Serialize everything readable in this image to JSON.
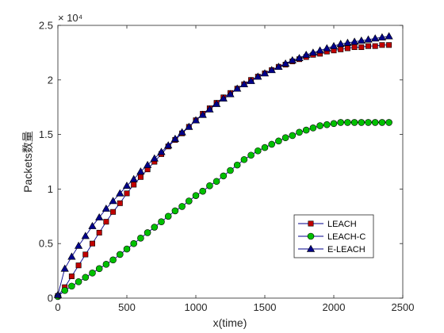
{
  "chart_data": {
    "type": "line",
    "xlabel": "x(time)",
    "ylabel": "Packets数量",
    "y_exponent_label": "× 10⁴",
    "xlim": [
      0,
      2500
    ],
    "ylim": [
      0,
      25000
    ],
    "x_ticks": [
      0,
      500,
      1000,
      1500,
      2000,
      2500
    ],
    "x_tick_labels": [
      "0",
      "500",
      "1000",
      "1500",
      "2000",
      "2500"
    ],
    "y_ticks": [
      0,
      5000,
      10000,
      15000,
      20000,
      25000
    ],
    "y_tick_labels": [
      "0",
      "0.5",
      "1",
      "1.5",
      "2",
      "2.5"
    ],
    "grid": false,
    "legend_position": "lower-right",
    "x": [
      0,
      50,
      100,
      150,
      200,
      250,
      300,
      350,
      400,
      450,
      500,
      550,
      600,
      650,
      700,
      750,
      800,
      850,
      900,
      950,
      1000,
      1050,
      1100,
      1150,
      1200,
      1250,
      1300,
      1350,
      1400,
      1450,
      1500,
      1550,
      1600,
      1650,
      1700,
      1750,
      1800,
      1850,
      1900,
      1950,
      2000,
      2050,
      2100,
      2150,
      2200,
      2250,
      2300,
      2350,
      2400
    ],
    "series": [
      {
        "name": "LEACH",
        "color": "#c00000",
        "marker": "square",
        "values": [
          200,
          1000,
          2000,
          3000,
          4000,
          5000,
          6000,
          7000,
          7900,
          8700,
          9600,
          10400,
          11100,
          11800,
          12500,
          13200,
          13900,
          14500,
          15100,
          15700,
          16300,
          16900,
          17400,
          17900,
          18400,
          18800,
          19200,
          19600,
          20000,
          20300,
          20600,
          20900,
          21200,
          21400,
          21700,
          21900,
          22100,
          22300,
          22400,
          22600,
          22700,
          22800,
          22900,
          23000,
          23000,
          23100,
          23100,
          23200,
          23200
        ]
      },
      {
        "name": "LEACH-C",
        "color": "#00c000",
        "marker": "circle",
        "values": [
          150,
          700,
          1100,
          1500,
          1900,
          2300,
          2700,
          3100,
          3500,
          4000,
          4500,
          5000,
          5500,
          6000,
          6500,
          7000,
          7500,
          8000,
          8400,
          8900,
          9400,
          9800,
          10300,
          10700,
          11200,
          11700,
          12200,
          12700,
          13100,
          13500,
          13800,
          14100,
          14400,
          14700,
          14900,
          15200,
          15400,
          15600,
          15800,
          15900,
          16000,
          16100,
          16100,
          16100,
          16100,
          16100,
          16100,
          16100,
          16100
        ]
      },
      {
        "name": "E-LEACH",
        "color": "#00008b",
        "marker": "triangle",
        "values": [
          300,
          2700,
          3800,
          4800,
          5700,
          6600,
          7400,
          8200,
          8900,
          9600,
          10300,
          10900,
          11600,
          12200,
          12800,
          13400,
          14000,
          14600,
          15200,
          15700,
          16300,
          16800,
          17300,
          17800,
          18300,
          18700,
          19200,
          19600,
          19900,
          20300,
          20600,
          20900,
          21200,
          21500,
          21800,
          22000,
          22300,
          22500,
          22700,
          22900,
          23100,
          23300,
          23400,
          23500,
          23600,
          23700,
          23800,
          23900,
          24000
        ]
      }
    ]
  }
}
